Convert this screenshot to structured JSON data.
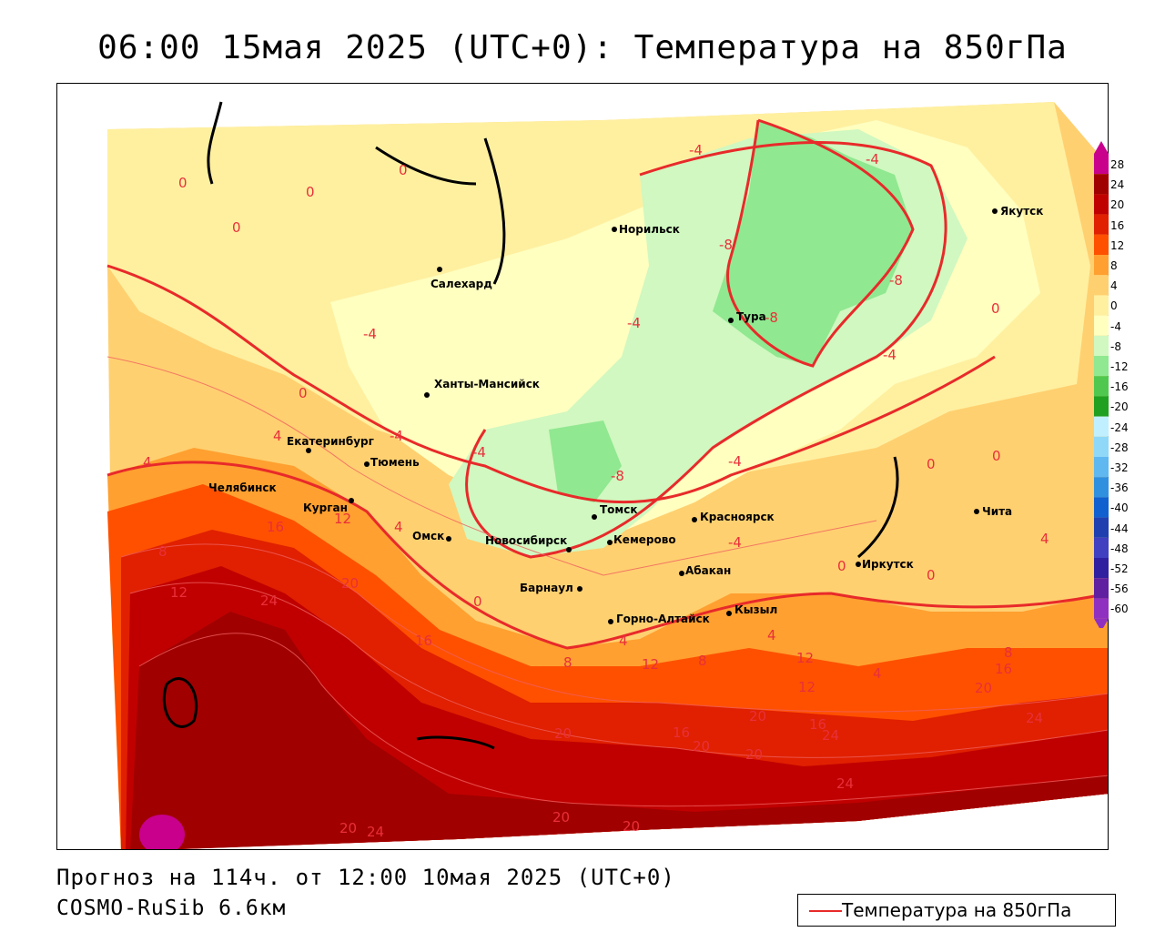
{
  "title": "06:00 15мая 2025 (UTC+0): Температура на 850гПа",
  "footer": {
    "forecast": "Прогноз на 114ч. от 12:00 10мая 2025 (UTC+0)",
    "model": "COSMO-RuSib 6.6км"
  },
  "legend": {
    "label": "Температура на 850гПа",
    "line_color": "#e82a2a"
  },
  "color_scale": {
    "levels": [
      {
        "label": "28",
        "color": "#c8008c"
      },
      {
        "label": "24",
        "color": "#a00000"
      },
      {
        "label": "20",
        "color": "#c00000"
      },
      {
        "label": "16",
        "color": "#e02000"
      },
      {
        "label": "12",
        "color": "#ff5000"
      },
      {
        "label": "8",
        "color": "#ffa030"
      },
      {
        "label": "4",
        "color": "#ffd070"
      },
      {
        "label": "0",
        "color": "#fff0a0"
      },
      {
        "label": "-4",
        "color": "#ffffc0"
      },
      {
        "label": "-8",
        "color": "#d0f8c0"
      },
      {
        "label": "-12",
        "color": "#90e890"
      },
      {
        "label": "-16",
        "color": "#50c850"
      },
      {
        "label": "-20",
        "color": "#20a020"
      },
      {
        "label": "-24",
        "color": "#c0f0ff"
      },
      {
        "label": "-28",
        "color": "#90d8f8"
      },
      {
        "label": "-32",
        "color": "#60b8f0"
      },
      {
        "label": "-36",
        "color": "#3090e0"
      },
      {
        "label": "-40",
        "color": "#1060d0"
      },
      {
        "label": "-44",
        "color": "#2040b0"
      },
      {
        "label": "-48",
        "color": "#4040c0"
      },
      {
        "label": "-52",
        "color": "#3020a0"
      },
      {
        "label": "-56",
        "color": "#6020a0"
      },
      {
        "label": "-60",
        "color": "#9030c0"
      }
    ]
  },
  "cities": [
    {
      "name": "Норильск"
    },
    {
      "name": "Якутск"
    },
    {
      "name": "Салехард"
    },
    {
      "name": "Тура"
    },
    {
      "name": "Ханты-Мансийск"
    },
    {
      "name": "Екатеринбург"
    },
    {
      "name": "Тюмень"
    },
    {
      "name": "Челябинск"
    },
    {
      "name": "Курган"
    },
    {
      "name": "Омск"
    },
    {
      "name": "Томск"
    },
    {
      "name": "Красноярск"
    },
    {
      "name": "Новосибирск"
    },
    {
      "name": "Кемерово"
    },
    {
      "name": "Абакан"
    },
    {
      "name": "Иркутск"
    },
    {
      "name": "Чита"
    },
    {
      "name": "Барнаул"
    },
    {
      "name": "Горно-Алтайск"
    },
    {
      "name": "Кызыл"
    }
  ],
  "isoline_labels": [
    "-4",
    "-4",
    "0",
    "0",
    "0",
    "0",
    "-8",
    "-8",
    "-8",
    "-4",
    "0",
    "-4",
    "-4",
    "-4",
    "-4",
    "-8",
    "-4",
    "0",
    "0",
    "0",
    "4",
    "4",
    "4",
    "0",
    "8",
    "12",
    "16",
    "12",
    "24",
    "20",
    "16",
    "0",
    "4",
    "12",
    "8",
    "4",
    "8",
    "12",
    "4",
    "12",
    "16",
    "20",
    "20",
    "16",
    "20",
    "16",
    "24",
    "20",
    "24",
    "20",
    "24",
    "20",
    "20",
    "20",
    "24",
    "-4",
    "4",
    "0",
    "8"
  ]
}
